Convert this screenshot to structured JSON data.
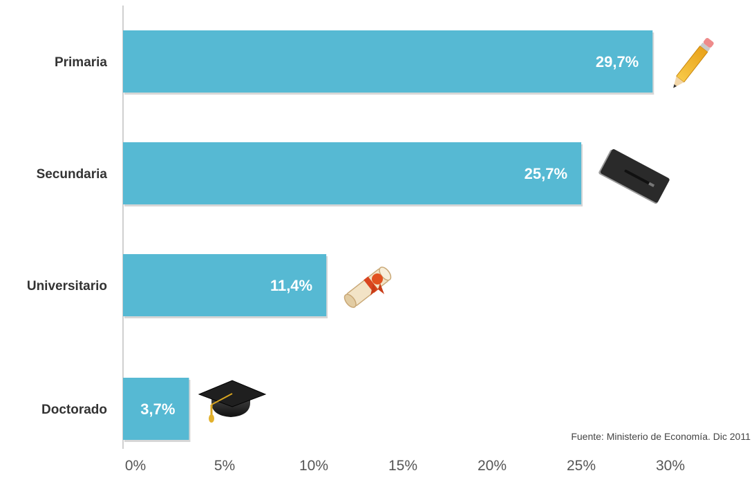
{
  "chart_data": {
    "type": "bar",
    "orientation": "horizontal",
    "categories": [
      "Primaria",
      "Secundaria",
      "Universitario",
      "Doctorado"
    ],
    "values": [
      29.7,
      25.7,
      11.4,
      3.7
    ],
    "data_labels": [
      "29,7%",
      "25,7%",
      "11,4%",
      "3,7%"
    ],
    "category_icons": [
      "pencil-icon",
      "notebook-icon",
      "diploma-icon",
      "graduation-cap-icon"
    ],
    "x_ticks": [
      0,
      5,
      10,
      15,
      20,
      25,
      30
    ],
    "x_tick_labels": [
      "0%",
      "5%",
      "10%",
      "15%",
      "20%",
      "25%",
      "30%"
    ],
    "xlim": [
      0,
      30
    ],
    "grid": false,
    "bar_color": "#56b9d3",
    "source": "Fuente: Ministerio de Economía. Dic 2011"
  }
}
